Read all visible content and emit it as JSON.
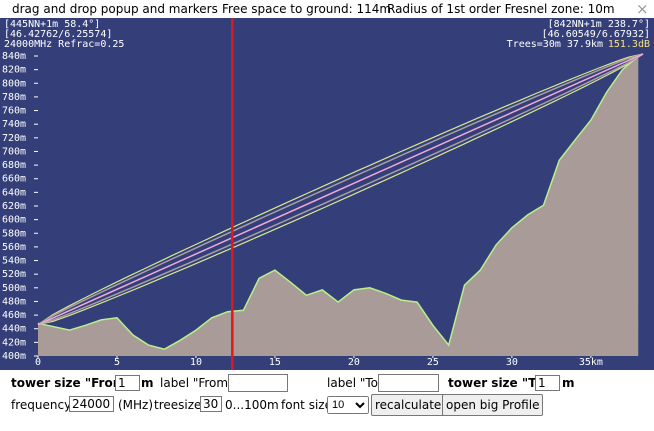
{
  "header": {
    "title": "drag and drop popup and markers",
    "free_space": "Free space to ground: 114m",
    "fresnel": "Radius of 1st order Fresnel zone: 10m",
    "close": "×"
  },
  "chart_data": {
    "type": "area",
    "info_left": [
      "[445NN+1m 58.4°]",
      "[46.42762/6.25574]",
      "24000MHz Refrac=0.25"
    ],
    "info_right": [
      "[842NN+1m 238.7°]",
      "[46.60549/6.67932]",
      "Trees=30m 37.9km"
    ],
    "loss": "151.3dB",
    "x": [
      0,
      1,
      2,
      3,
      4,
      5,
      6,
      7,
      8,
      9,
      10,
      11,
      12,
      13,
      14,
      15,
      16,
      17,
      18,
      19,
      20,
      21,
      22,
      23,
      24,
      25,
      26,
      27,
      28,
      29,
      30,
      31,
      32,
      33,
      34,
      35,
      36,
      37,
      38
    ],
    "values": [
      448,
      443,
      438,
      445,
      453,
      456,
      431,
      416,
      410,
      423,
      438,
      456,
      465,
      467,
      514,
      526,
      508,
      489,
      497,
      479,
      497,
      500,
      492,
      482,
      479,
      445,
      416,
      504,
      526,
      563,
      588,
      607,
      621,
      687,
      717,
      746,
      787,
      820,
      840
    ],
    "color": "#a99c98",
    "line_color": "#b8f08a",
    "sight_line": {
      "x": [
        0,
        38.3
      ],
      "values": [
        446,
        843
      ]
    },
    "fresnel_radius": 10,
    "marker_x": 12.3,
    "xlim": [
      0,
      38.3
    ],
    "ylim": [
      400,
      840
    ],
    "xticks": [
      0,
      5,
      10,
      15,
      20,
      25,
      30,
      {
        "value": 35,
        "label": "35km"
      }
    ],
    "yticks": [
      {
        "value": 400,
        "label": "400m"
      },
      {
        "value": 420,
        "label": "420m"
      },
      {
        "value": 440,
        "label": "440m"
      },
      {
        "value": 460,
        "label": "460m"
      },
      {
        "value": 480,
        "label": "480m"
      },
      {
        "value": 500,
        "label": "500m"
      },
      {
        "value": 520,
        "label": "520m"
      },
      {
        "value": 540,
        "label": "540m"
      },
      {
        "value": 560,
        "label": "560m"
      },
      {
        "value": 580,
        "label": "580m"
      },
      {
        "value": 600,
        "label": "600m"
      },
      {
        "value": 620,
        "label": "620m"
      },
      {
        "value": 640,
        "label": "640m"
      },
      {
        "value": 660,
        "label": "660m"
      },
      {
        "value": 680,
        "label": "680m"
      },
      {
        "value": 700,
        "label": "700m"
      },
      {
        "value": 720,
        "label": "720m"
      },
      {
        "value": 740,
        "label": "740m"
      },
      {
        "value": 760,
        "label": "760m"
      },
      {
        "value": 780,
        "label": "780m"
      },
      {
        "value": 800,
        "label": "800m"
      },
      {
        "value": 820,
        "label": "820m"
      },
      {
        "value": 840,
        "label": "840m"
      }
    ]
  },
  "form": {
    "tower_from_label": "tower size \"From\"",
    "tower_from_value": "1",
    "tower_from_unit": "m",
    "label_from": "label \"From\"",
    "label_to": "label \"To\"",
    "tower_to_label": "tower size \"To\"",
    "tower_to_value": "1",
    "tower_to_unit": "m",
    "frequency_label": "frequency:",
    "frequency_value": "24000",
    "frequency_unit": "(MHz)",
    "treesize_label": "treesize:",
    "treesize_value": "30",
    "treesize_range": "0...100m",
    "fontsize_label": "font size",
    "fontsize_value": "10",
    "recalculate": "recalculate",
    "open_profile": "open big Profile"
  }
}
